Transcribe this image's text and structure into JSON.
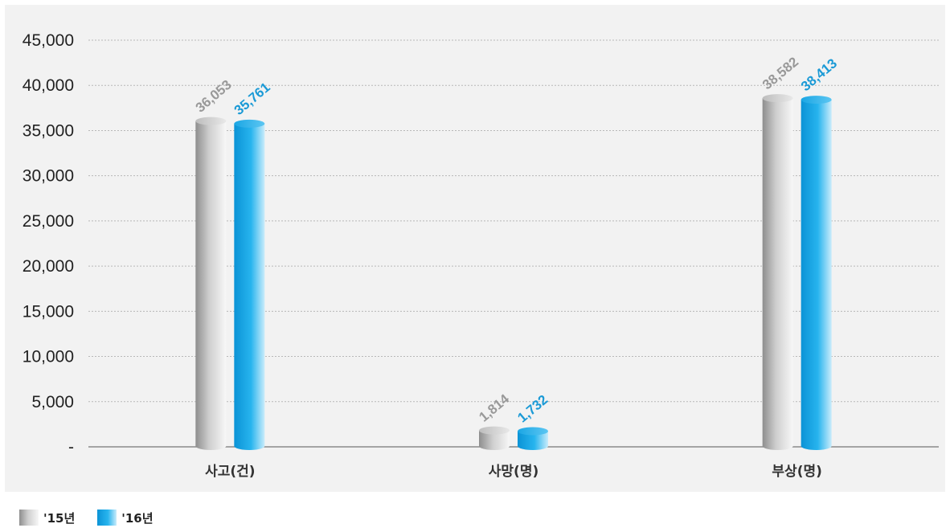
{
  "chart_data": {
    "type": "bar",
    "categories": [
      "사고(건)",
      "사망(명)",
      "부상(명)"
    ],
    "series": [
      {
        "name": "'15년",
        "values": [
          36053,
          1814,
          38582
        ],
        "labels": [
          "36,053",
          "1,814",
          "38,582"
        ],
        "color": "#b5b5b5",
        "label_color": "#999999"
      },
      {
        "name": "'16년",
        "values": [
          35761,
          1732,
          38413
        ],
        "labels": [
          "35,761",
          "1,732",
          "38,413"
        ],
        "color": "#1aa6e4",
        "label_color": "#1b9ad6"
      }
    ],
    "ylim": [
      0,
      45000
    ],
    "yticks": [
      0,
      5000,
      10000,
      15000,
      20000,
      25000,
      30000,
      35000,
      40000,
      45000
    ],
    "ytick_labels": [
      "-",
      "5,000",
      "10,000",
      "15,000",
      "20,000",
      "25,000",
      "30,000",
      "35,000",
      "40,000",
      "45,000"
    ],
    "grid": true,
    "legend_position": "bottom-left",
    "title": "",
    "xlabel": "",
    "ylabel": ""
  }
}
